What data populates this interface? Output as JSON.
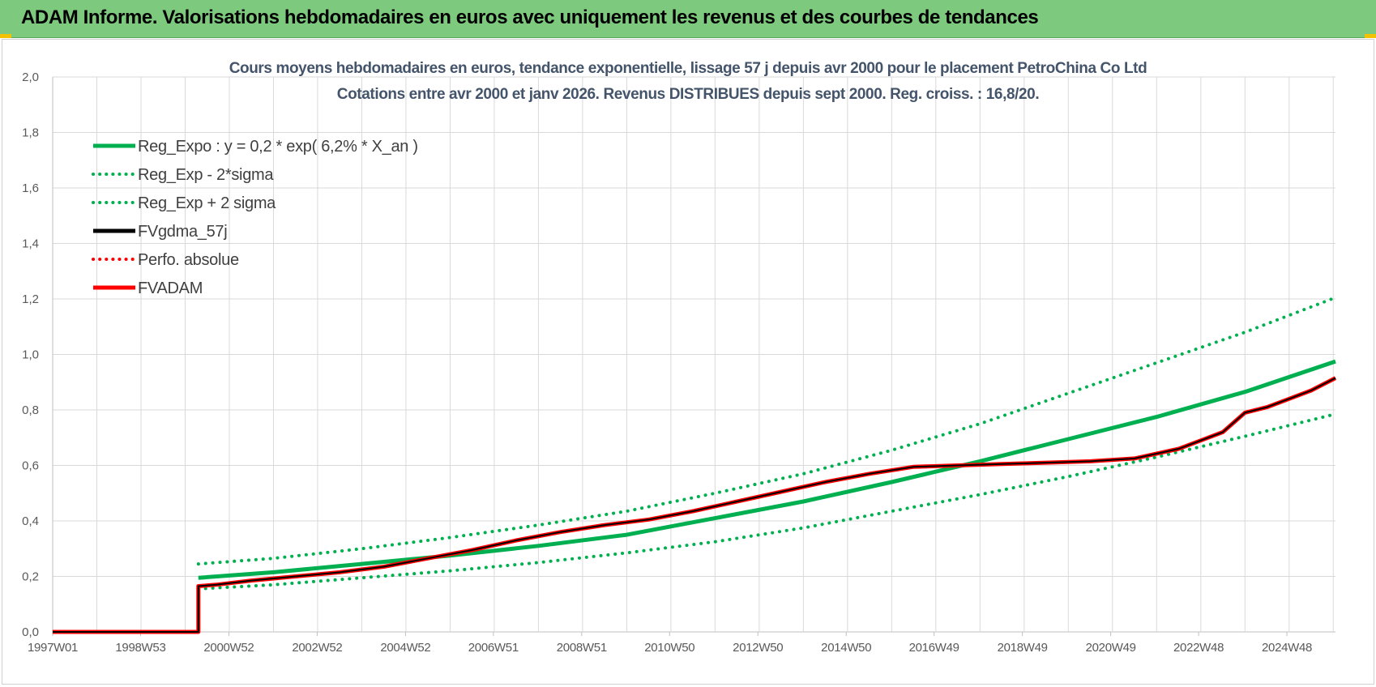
{
  "header": {
    "title": "ADAM Informe. Valorisations hebdomadaires en euros avec uniquement les revenus et des courbes de tendances"
  },
  "chart_data": {
    "type": "line",
    "title": "Cours moyens hebdomadaires en euros, tendance exponentielle, lissage 57 j depuis avr 2000 pour le placement PetroChina Co Ltd",
    "subtitle": "Cotations entre avr 2000 et janv 2026. Revenus DISTRIBUES depuis sept 2000. Reg. croiss. : 16,8/20.",
    "xlabel": "",
    "ylabel": "",
    "x_range": [
      1997.0,
      2026.05
    ],
    "x_tick_labels": [
      "1997W01",
      "1998W53",
      "2000W52",
      "2002W52",
      "2004W52",
      "2006W51",
      "2008W51",
      "2010W50",
      "2012W50",
      "2014W50",
      "2016W49",
      "2018W49",
      "2020W49",
      "2022W48",
      "2024W48"
    ],
    "x_tick_years": [
      1997.0,
      1998.99,
      2000.99,
      2002.99,
      2004.99,
      2006.98,
      2008.98,
      2010.97,
      2012.97,
      2014.97,
      2016.96,
      2018.96,
      2020.96,
      2022.95,
      2024.95
    ],
    "ylim": [
      0,
      2.0
    ],
    "y_ticks": [
      0,
      0.2,
      0.4,
      0.6,
      0.8,
      1.0,
      1.2,
      1.4,
      1.6,
      1.8,
      2.0
    ],
    "y_tick_labels": [
      "0,0",
      "0,2",
      "0,4",
      "0,6",
      "0,8",
      "1,0",
      "1,2",
      "1,4",
      "1,6",
      "1,8",
      "2,0"
    ],
    "grid": true,
    "legend_position": "top-left",
    "series": [
      {
        "name": "Reg_Expo : y = 0,2 * exp( 6,2% *  X_an )",
        "style": "solid",
        "color": "#00b050",
        "width": 5,
        "x": [
          2000.3,
          2002,
          2004,
          2006,
          2008,
          2010,
          2012,
          2014,
          2016,
          2018,
          2020,
          2022,
          2024,
          2026.05
        ],
        "y": [
          0.195,
          0.215,
          0.245,
          0.275,
          0.31,
          0.35,
          0.41,
          0.47,
          0.54,
          0.615,
          0.695,
          0.775,
          0.865,
          0.975
        ]
      },
      {
        "name": "Reg_Exp - 2*sigma",
        "style": "dotted",
        "color": "#00b050",
        "width": 4,
        "x": [
          2000.3,
          2002,
          2004,
          2006,
          2008,
          2010,
          2012,
          2014,
          2016,
          2018,
          2020,
          2022,
          2024,
          2026.05
        ],
        "y": [
          0.155,
          0.17,
          0.195,
          0.22,
          0.25,
          0.285,
          0.325,
          0.375,
          0.435,
          0.495,
          0.56,
          0.63,
          0.705,
          0.785
        ]
      },
      {
        "name": "Reg_Exp + 2 sigma",
        "style": "dotted",
        "color": "#00b050",
        "width": 4,
        "x": [
          2000.3,
          2002,
          2004,
          2006,
          2008,
          2010,
          2012,
          2014,
          2016,
          2018,
          2020,
          2022,
          2024,
          2026.05
        ],
        "y": [
          0.245,
          0.265,
          0.3,
          0.34,
          0.385,
          0.435,
          0.5,
          0.57,
          0.655,
          0.75,
          0.86,
          0.97,
          1.08,
          1.205
        ]
      },
      {
        "name": "FVgdma_57j",
        "style": "solid",
        "color": "#000000",
        "width": 2,
        "x": [
          1997.0,
          2000.3,
          2000.3,
          2000.7,
          2001.5,
          2002.5,
          2003.5,
          2004.5,
          2005.5,
          2006.5,
          2007.5,
          2008.5,
          2009.5,
          2010.5,
          2011.5,
          2012.5,
          2013.5,
          2014.5,
          2015.5,
          2016.5,
          2017.5,
          2018.5,
          2019.5,
          2020.5,
          2021.5,
          2022.5,
          2023.0,
          2023.5,
          2024.0,
          2024.5,
          2025.0,
          2025.5,
          2026.05
        ],
        "y": [
          0.0,
          0.0,
          0.165,
          0.17,
          0.185,
          0.2,
          0.215,
          0.235,
          0.265,
          0.295,
          0.33,
          0.36,
          0.385,
          0.405,
          0.435,
          0.47,
          0.505,
          0.54,
          0.57,
          0.595,
          0.6,
          0.605,
          0.61,
          0.615,
          0.625,
          0.66,
          0.69,
          0.72,
          0.79,
          0.81,
          0.84,
          0.87,
          0.915
        ]
      },
      {
        "name": "Perfo. absolue",
        "style": "dotted",
        "color": "#ff0000",
        "width": 3,
        "x": [],
        "y": []
      },
      {
        "name": "FVADAM",
        "style": "solid",
        "color": "#ff0000",
        "width": 5,
        "x": [
          1997.0,
          2000.3,
          2000.3,
          2000.7,
          2001.5,
          2002.5,
          2003.5,
          2004.5,
          2005.5,
          2006.5,
          2007.5,
          2008.5,
          2009.5,
          2010.5,
          2011.5,
          2012.5,
          2013.5,
          2014.5,
          2015.5,
          2016.5,
          2017.5,
          2018.5,
          2019.5,
          2020.5,
          2021.5,
          2022.5,
          2023.0,
          2023.5,
          2024.0,
          2024.5,
          2025.0,
          2025.5,
          2026.05
        ],
        "y": [
          0.0,
          0.0,
          0.165,
          0.17,
          0.185,
          0.2,
          0.215,
          0.235,
          0.265,
          0.295,
          0.33,
          0.36,
          0.385,
          0.405,
          0.435,
          0.47,
          0.505,
          0.54,
          0.57,
          0.595,
          0.6,
          0.605,
          0.61,
          0.615,
          0.625,
          0.66,
          0.69,
          0.72,
          0.79,
          0.81,
          0.84,
          0.87,
          0.915
        ]
      }
    ]
  }
}
